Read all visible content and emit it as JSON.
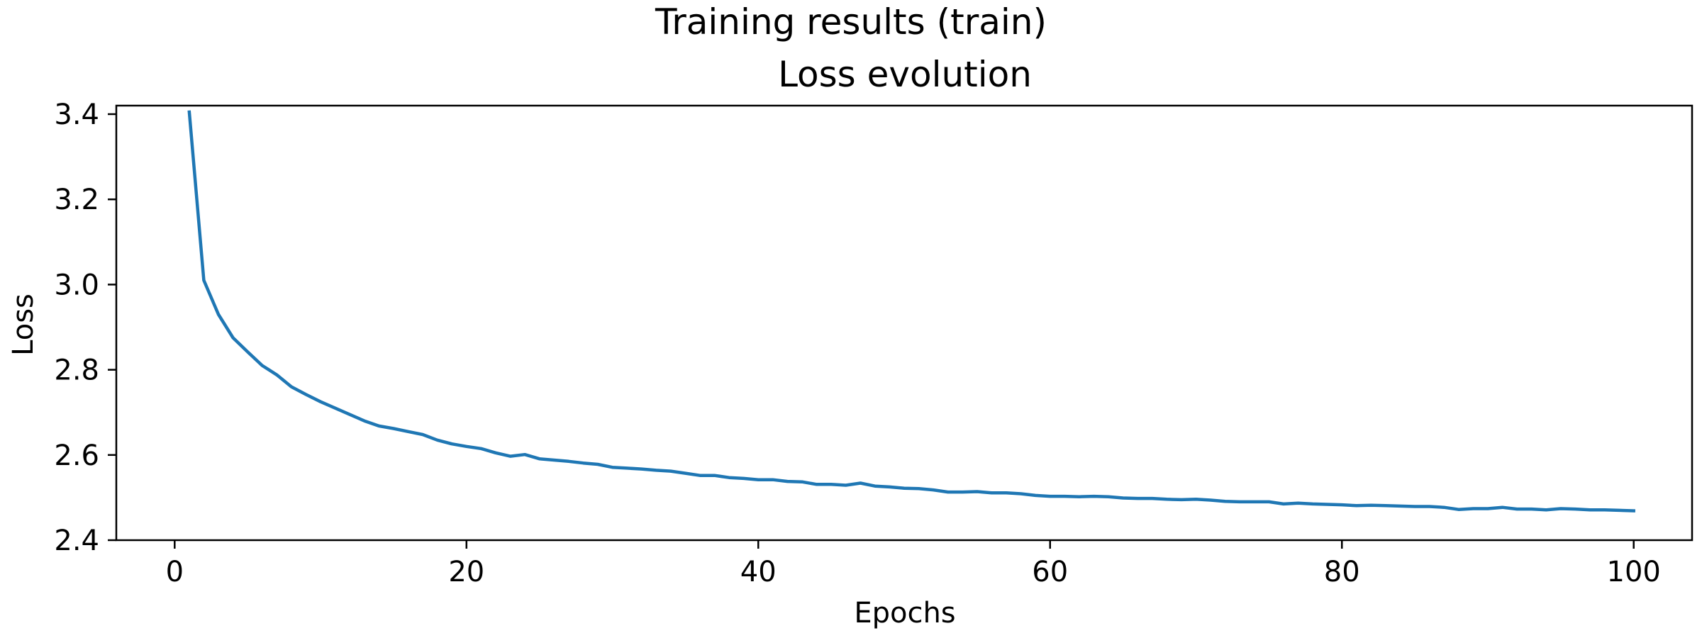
{
  "figure": {
    "suptitle": "Training results (train)"
  },
  "chart_data": {
    "type": "line",
    "title": "Loss evolution",
    "xlabel": "Epochs",
    "ylabel": "Loss",
    "xlim": [
      -4,
      104
    ],
    "ylim": [
      2.4,
      3.42
    ],
    "xticks": [
      0,
      20,
      40,
      60,
      80,
      100
    ],
    "yticks": [
      2.4,
      2.6,
      2.8,
      3.0,
      3.2,
      3.4
    ],
    "xtick_labels": [
      "0",
      "20",
      "40",
      "60",
      "80",
      "100"
    ],
    "ytick_labels": [
      "2.4",
      "2.6",
      "2.8",
      "3.0",
      "3.2",
      "3.4"
    ],
    "grid": false,
    "legend": "none",
    "series": [
      {
        "color": "#1f77b4",
        "x": [
          1,
          2,
          3,
          4,
          5,
          6,
          7,
          8,
          9,
          10,
          11,
          12,
          13,
          14,
          15,
          16,
          17,
          18,
          19,
          20,
          21,
          22,
          23,
          24,
          25,
          26,
          27,
          28,
          29,
          30,
          31,
          32,
          33,
          34,
          35,
          36,
          37,
          38,
          39,
          40,
          41,
          42,
          43,
          44,
          45,
          46,
          47,
          48,
          49,
          50,
          51,
          52,
          53,
          54,
          55,
          56,
          57,
          58,
          59,
          60,
          61,
          62,
          63,
          64,
          65,
          66,
          67,
          68,
          69,
          70,
          71,
          72,
          73,
          74,
          75,
          76,
          77,
          78,
          79,
          80,
          81,
          82,
          83,
          84,
          85,
          86,
          87,
          88,
          89,
          90,
          91,
          92,
          93,
          94,
          95,
          96,
          97,
          98,
          99,
          100
        ],
        "values": [
          3.405,
          3.01,
          2.93,
          2.875,
          2.842,
          2.81,
          2.788,
          2.76,
          2.742,
          2.725,
          2.71,
          2.695,
          2.68,
          2.668,
          2.662,
          2.655,
          2.648,
          2.635,
          2.626,
          2.62,
          2.615,
          2.605,
          2.597,
          2.601,
          2.591,
          2.588,
          2.585,
          2.581,
          2.578,
          2.571,
          2.569,
          2.567,
          2.564,
          2.562,
          2.557,
          2.552,
          2.552,
          2.547,
          2.545,
          2.542,
          2.542,
          2.538,
          2.537,
          2.531,
          2.531,
          2.529,
          2.534,
          2.527,
          2.525,
          2.522,
          2.521,
          2.518,
          2.513,
          2.513,
          2.514,
          2.511,
          2.511,
          2.509,
          2.505,
          2.503,
          2.503,
          2.502,
          2.503,
          2.502,
          2.499,
          2.498,
          2.498,
          2.496,
          2.495,
          2.496,
          2.494,
          2.491,
          2.49,
          2.49,
          2.49,
          2.485,
          2.487,
          2.485,
          2.484,
          2.483,
          2.481,
          2.482,
          2.481,
          2.48,
          2.479,
          2.479,
          2.477,
          2.472,
          2.474,
          2.474,
          2.477,
          2.473,
          2.473,
          2.471,
          2.474,
          2.473,
          2.471,
          2.471,
          2.47,
          2.469
        ]
      }
    ]
  }
}
